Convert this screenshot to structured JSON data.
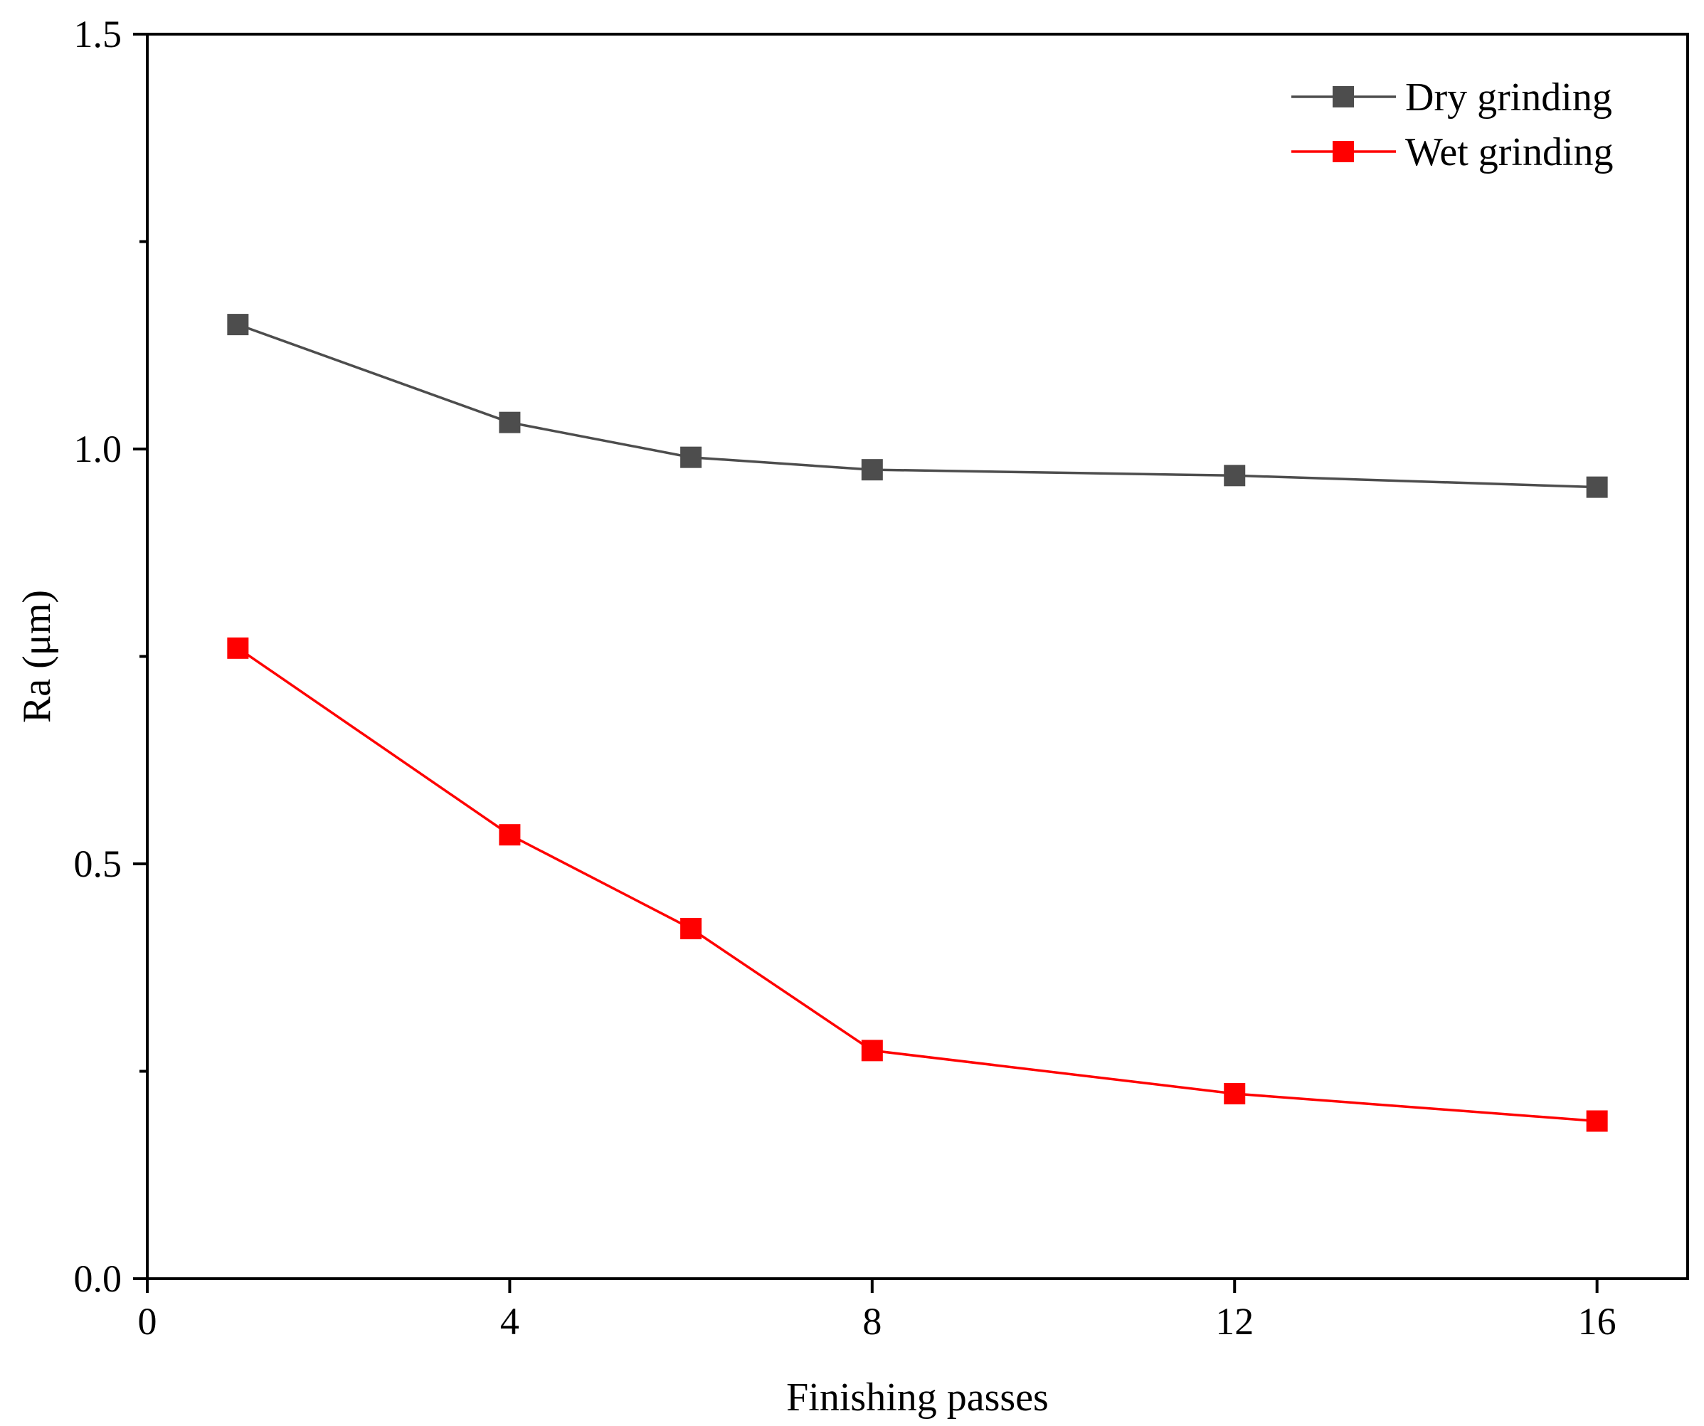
{
  "chart_data": {
    "type": "line",
    "title": "",
    "xlabel": "Finishing passes",
    "ylabel": "Ra (μm)",
    "xlim": [
      0,
      17
    ],
    "ylim": [
      0,
      1.5
    ],
    "xticks": [
      0,
      4,
      8,
      12,
      16
    ],
    "xtick_labels": [
      "0",
      "4",
      "8",
      "12",
      "16"
    ],
    "yticks": [
      0.0,
      0.5,
      1.0,
      1.5
    ],
    "ytick_labels": [
      "0.0",
      "0.5",
      "1.0",
      "1.5"
    ],
    "y_minor_ticks": [
      0.25,
      0.75,
      1.25
    ],
    "grid": false,
    "legend_position": "top-right",
    "series": [
      {
        "name": "Dry grinding",
        "color": "#4d4d4d",
        "marker": "square",
        "x": [
          1,
          4,
          6,
          8,
          12,
          16
        ],
        "y": [
          1.15,
          1.032,
          0.99,
          0.975,
          0.968,
          0.954
        ]
      },
      {
        "name": "Wet grinding",
        "color": "#ff0000",
        "marker": "square",
        "x": [
          1,
          4,
          6,
          8,
          12,
          16
        ],
        "y": [
          0.76,
          0.535,
          0.422,
          0.275,
          0.223,
          0.19
        ]
      }
    ]
  }
}
